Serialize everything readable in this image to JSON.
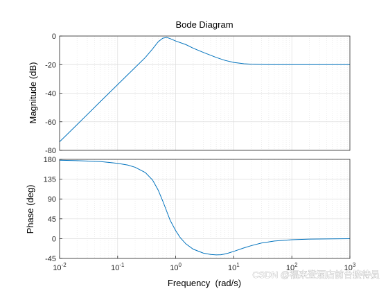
{
  "chart_data": [
    {
      "type": "line",
      "title": "Bode Diagram",
      "ylabel": "Magnitude (dB)",
      "xlabel": "",
      "xscale": "log",
      "xlim": [
        0.01,
        1000
      ],
      "ylim": [
        -80,
        0
      ],
      "yticks": [
        0,
        -20,
        -40,
        -60,
        -80
      ],
      "ytick_labels": [
        "0",
        "-20",
        "-40",
        "-60",
        "-80"
      ],
      "grid": true,
      "series": [
        {
          "color": "#0072bd",
          "x": [
            0.01,
            0.02,
            0.05,
            0.1,
            0.2,
            0.3,
            0.4,
            0.5,
            0.6,
            0.7,
            0.8,
            1,
            1.5,
            2,
            3,
            5,
            7,
            10,
            15,
            20,
            30,
            50,
            100,
            300,
            1000
          ],
          "y": [
            -74,
            -62,
            -46,
            -34,
            -22,
            -15,
            -9,
            -4,
            -1.5,
            -1,
            -1.8,
            -3.5,
            -6,
            -8.5,
            -11.5,
            -15,
            -17,
            -18.5,
            -19.4,
            -19.7,
            -19.9,
            -20,
            -20,
            -20,
            -20
          ]
        }
      ]
    },
    {
      "type": "line",
      "title": "",
      "ylabel": "Phase (deg)",
      "xlabel": "Frequency  (rad/s)",
      "xscale": "log",
      "xlim": [
        0.01,
        1000
      ],
      "ylim": [
        -45,
        180
      ],
      "yticks": [
        180,
        135,
        90,
        45,
        0,
        -45
      ],
      "ytick_labels": [
        "180",
        "135",
        "90",
        "45",
        "0",
        "-45"
      ],
      "xticks": [
        0.01,
        0.1,
        1,
        10,
        100,
        1000
      ],
      "xtick_bases": [
        "10",
        "10",
        "10",
        "10",
        "10",
        "10"
      ],
      "xtick_exponents": [
        "-2",
        "-1",
        "0",
        "1",
        "2",
        "3"
      ],
      "grid": true,
      "series": [
        {
          "color": "#0072bd",
          "x": [
            0.01,
            0.02,
            0.05,
            0.1,
            0.15,
            0.2,
            0.3,
            0.4,
            0.5,
            0.6,
            0.7,
            0.8,
            1,
            1.2,
            1.5,
            2,
            3,
            4,
            5,
            6,
            7,
            8,
            10,
            15,
            20,
            30,
            50,
            100,
            200,
            500,
            1000
          ],
          "y": [
            178,
            177,
            175,
            171,
            167,
            162,
            150,
            133,
            110,
            85,
            62,
            42,
            18,
            2,
            -12,
            -24,
            -33,
            -36,
            -37,
            -36.5,
            -35,
            -33,
            -29,
            -21,
            -16,
            -10,
            -5.5,
            -2.5,
            -1.2,
            -0.5,
            -0.2
          ]
        }
      ]
    }
  ],
  "watermark": "CSDN @福来登酒店前台接待员"
}
